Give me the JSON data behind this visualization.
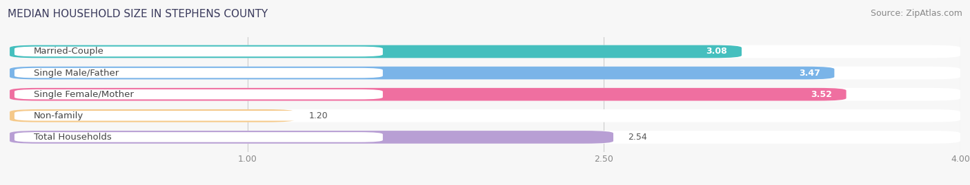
{
  "title": "MEDIAN HOUSEHOLD SIZE IN STEPHENS COUNTY",
  "source": "Source: ZipAtlas.com",
  "categories": [
    "Married-Couple",
    "Single Male/Father",
    "Single Female/Mother",
    "Non-family",
    "Total Households"
  ],
  "values": [
    3.08,
    3.47,
    3.52,
    1.2,
    2.54
  ],
  "bar_colors": [
    "#45bfbe",
    "#7ab4e8",
    "#ef6fa0",
    "#f5c98a",
    "#b89fd4"
  ],
  "value_label_inside": [
    true,
    true,
    true,
    false,
    false
  ],
  "xlim": [
    0,
    4.0
  ],
  "xticks": [
    1.0,
    2.5,
    4.0
  ],
  "title_fontsize": 11,
  "source_fontsize": 9,
  "bar_label_fontsize": 9,
  "category_fontsize": 9.5,
  "background_color": "#f7f7f7"
}
